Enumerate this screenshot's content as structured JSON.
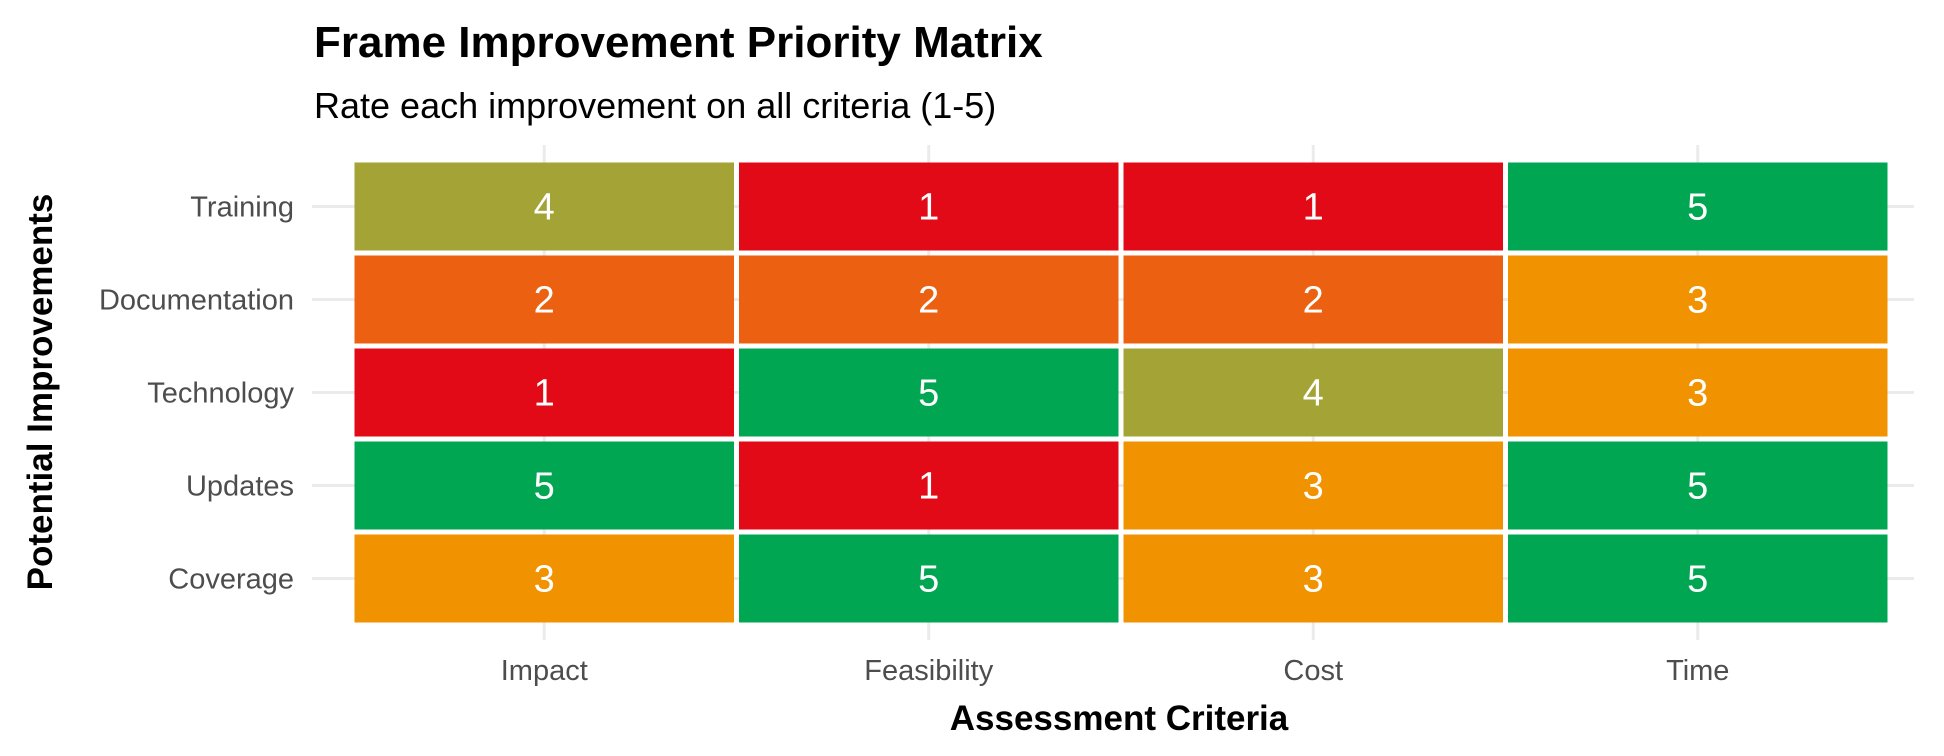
{
  "chart_data": {
    "type": "heatmap",
    "title": "Frame Improvement Priority Matrix",
    "subtitle": "Rate each improvement on all criteria (1-5)",
    "xlabel": "Assessment Criteria",
    "ylabel": "Potential Improvements",
    "x_categories": [
      "Impact",
      "Feasibility",
      "Cost",
      "Time"
    ],
    "y_categories": [
      "Training",
      "Documentation",
      "Technology",
      "Updates",
      "Coverage"
    ],
    "values": [
      [
        4,
        1,
        1,
        5
      ],
      [
        2,
        2,
        2,
        3
      ],
      [
        1,
        5,
        4,
        3
      ],
      [
        5,
        1,
        3,
        5
      ],
      [
        3,
        5,
        3,
        5
      ]
    ],
    "color_scale": {
      "1": "#e20a17",
      "2": "#ec6111",
      "3": "#f19200",
      "4": "#a3a336",
      "5": "#00a651"
    },
    "grid": true,
    "legend": "none"
  }
}
